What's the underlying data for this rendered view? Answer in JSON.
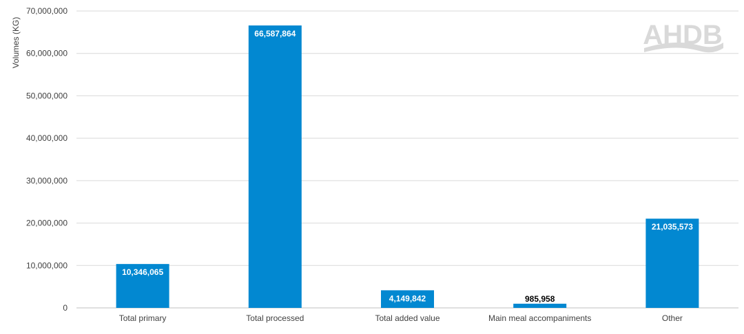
{
  "chart_data": {
    "type": "bar",
    "ylabel": "Volumes (KG)",
    "categories": [
      "Total primary",
      "Total processed",
      "Total added value",
      "Main meal accompaniments",
      "Other"
    ],
    "values": [
      10346065,
      66587864,
      4149842,
      985958,
      21035573
    ],
    "data_labels": [
      "10,346,065",
      "66,587,864",
      "4,149,842",
      "985,958",
      "21,035,573"
    ],
    "ylim": [
      0,
      70000000
    ],
    "yticks": [
      0,
      10000000,
      20000000,
      30000000,
      40000000,
      50000000,
      60000000,
      70000000
    ],
    "ytick_labels": [
      "0",
      "10,000,000",
      "20,000,000",
      "30,000,000",
      "40,000,000",
      "50,000,000",
      "60,000,000",
      "70,000,000"
    ],
    "grid": true,
    "bar_color": "#0288d1",
    "label_inside_color": "#ffffff",
    "label_outside_color": "#000000"
  },
  "logo": {
    "text": "AHDB",
    "color": "#d9d9d9"
  }
}
